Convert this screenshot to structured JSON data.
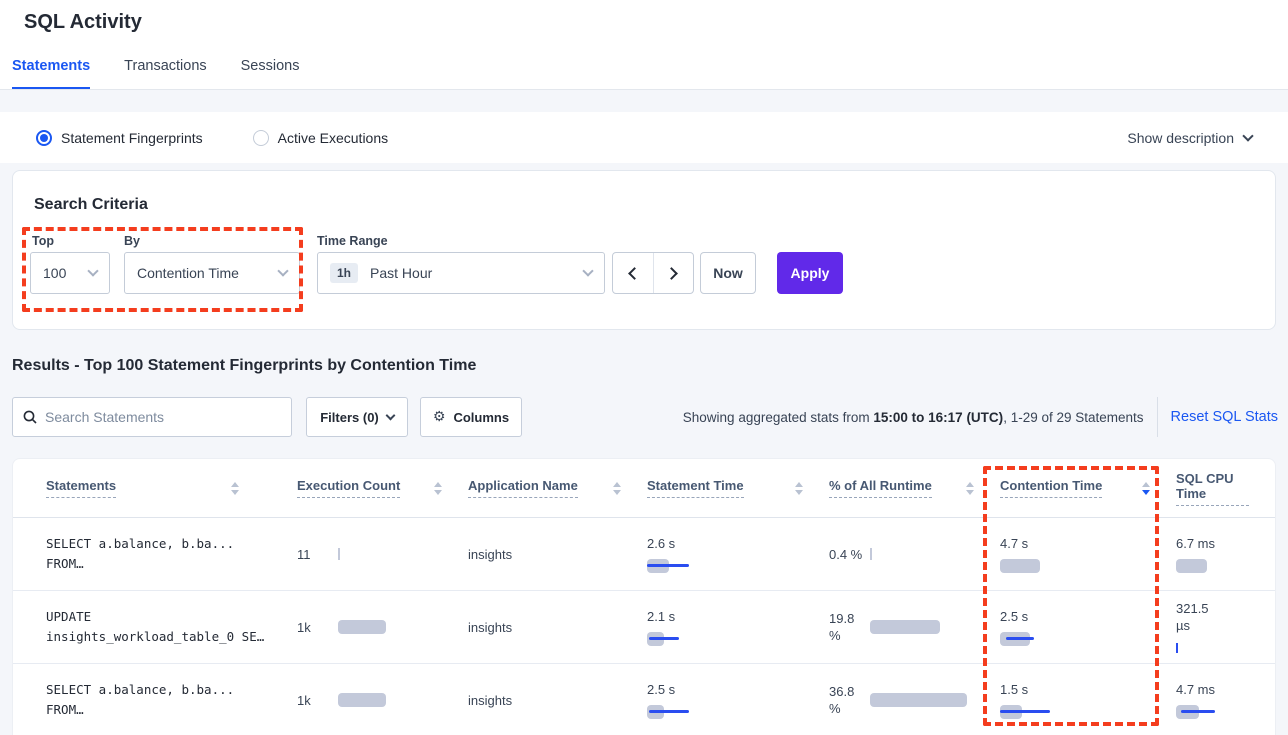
{
  "page": {
    "title": "SQL Activity"
  },
  "tabs": [
    {
      "label": "Statements",
      "active": true
    },
    {
      "label": "Transactions",
      "active": false
    },
    {
      "label": "Sessions",
      "active": false
    }
  ],
  "view_toggle": {
    "fingerprints": "Statement Fingerprints",
    "active_executions": "Active Executions",
    "show_description": "Show description"
  },
  "search_criteria": {
    "heading": "Search Criteria",
    "top_label": "Top",
    "top_value": "100",
    "by_label": "By",
    "by_value": "Contention Time",
    "time_range_label": "Time Range",
    "time_badge": "1h",
    "time_value": "Past Hour",
    "now": "Now",
    "apply": "Apply"
  },
  "results": {
    "heading": "Results - Top 100 Statement Fingerprints by Contention Time",
    "search_placeholder": "Search Statements",
    "filters": "Filters (0)",
    "columns": "Columns",
    "summary_prefix": "Showing aggregated stats from ",
    "summary_bold": "15:00 to 16:17 (UTC)",
    "summary_suffix": ", 1-29 of 29 Statements",
    "reset": "Reset SQL Stats"
  },
  "table": {
    "headers": [
      {
        "label": "Statements",
        "sort": "none"
      },
      {
        "label": "Execution Count",
        "sort": "none"
      },
      {
        "label": "Application Name",
        "sort": "none"
      },
      {
        "label": "Statement Time",
        "sort": "none"
      },
      {
        "label": "% of All Runtime",
        "sort": "none"
      },
      {
        "label": "Contention Time",
        "sort": "desc"
      },
      {
        "label": "SQL CPU Time",
        "sort": "none"
      }
    ],
    "rows": [
      {
        "statement": {
          "line1": "SELECT a.balance, b.ba...",
          "line2": "FROM…"
        },
        "execution_count": {
          "value": "11",
          "bar": {
            "tick": "gray"
          }
        },
        "application": "insights",
        "statement_time": {
          "value": "2.6 s",
          "bar": {
            "gray": 22,
            "blue": [
              0,
              42
            ]
          }
        },
        "runtime": {
          "line1": "0.4 %",
          "line2": "",
          "bar": {
            "tick": "gray"
          }
        },
        "contention": {
          "value": "4.7 s",
          "bar": {
            "gray": 40
          }
        },
        "cpu": {
          "line1": "6.7 ms",
          "line2": "",
          "bar": {
            "gray": 31
          }
        }
      },
      {
        "statement": {
          "line1": "UPDATE",
          "line2": "insights_workload_table_0 SE…"
        },
        "execution_count": {
          "value": "1k",
          "bar": {
            "gray": 48
          }
        },
        "application": "insights",
        "statement_time": {
          "value": "2.1 s",
          "bar": {
            "gray": 17,
            "blue": [
              2,
              30
            ]
          }
        },
        "runtime": {
          "line1": "19.8",
          "line2": "%",
          "bar": {
            "gray": 70
          }
        },
        "contention": {
          "value": "2.5 s",
          "bar": {
            "gray": 30,
            "blue": [
              6,
              28
            ]
          }
        },
        "cpu": {
          "line1": "321.5",
          "line2": "µs",
          "bar": {
            "tick": "blue"
          }
        }
      },
      {
        "statement": {
          "line1": "SELECT a.balance, b.ba...",
          "line2": "FROM…"
        },
        "execution_count": {
          "value": "1k",
          "bar": {
            "gray": 48
          }
        },
        "application": "insights",
        "statement_time": {
          "value": "2.5 s",
          "bar": {
            "gray": 17,
            "blue": [
              2,
              40
            ]
          }
        },
        "runtime": {
          "line1": "36.8",
          "line2": "%",
          "bar": {
            "gray": 97
          }
        },
        "contention": {
          "value": "1.5 s",
          "bar": {
            "gray": 22,
            "blue": [
              0,
              50
            ]
          }
        },
        "cpu": {
          "line1": "4.7 ms",
          "line2": "",
          "bar": {
            "gray": 23,
            "blue": [
              5,
              34
            ]
          }
        }
      }
    ]
  },
  "colors": {
    "accent_blue": "#1a57f2",
    "apply_purple": "#6129e9",
    "annotation_red": "#f43d1e",
    "bar_gray": "#c3c9da",
    "bar_blue": "#2a4df0"
  }
}
